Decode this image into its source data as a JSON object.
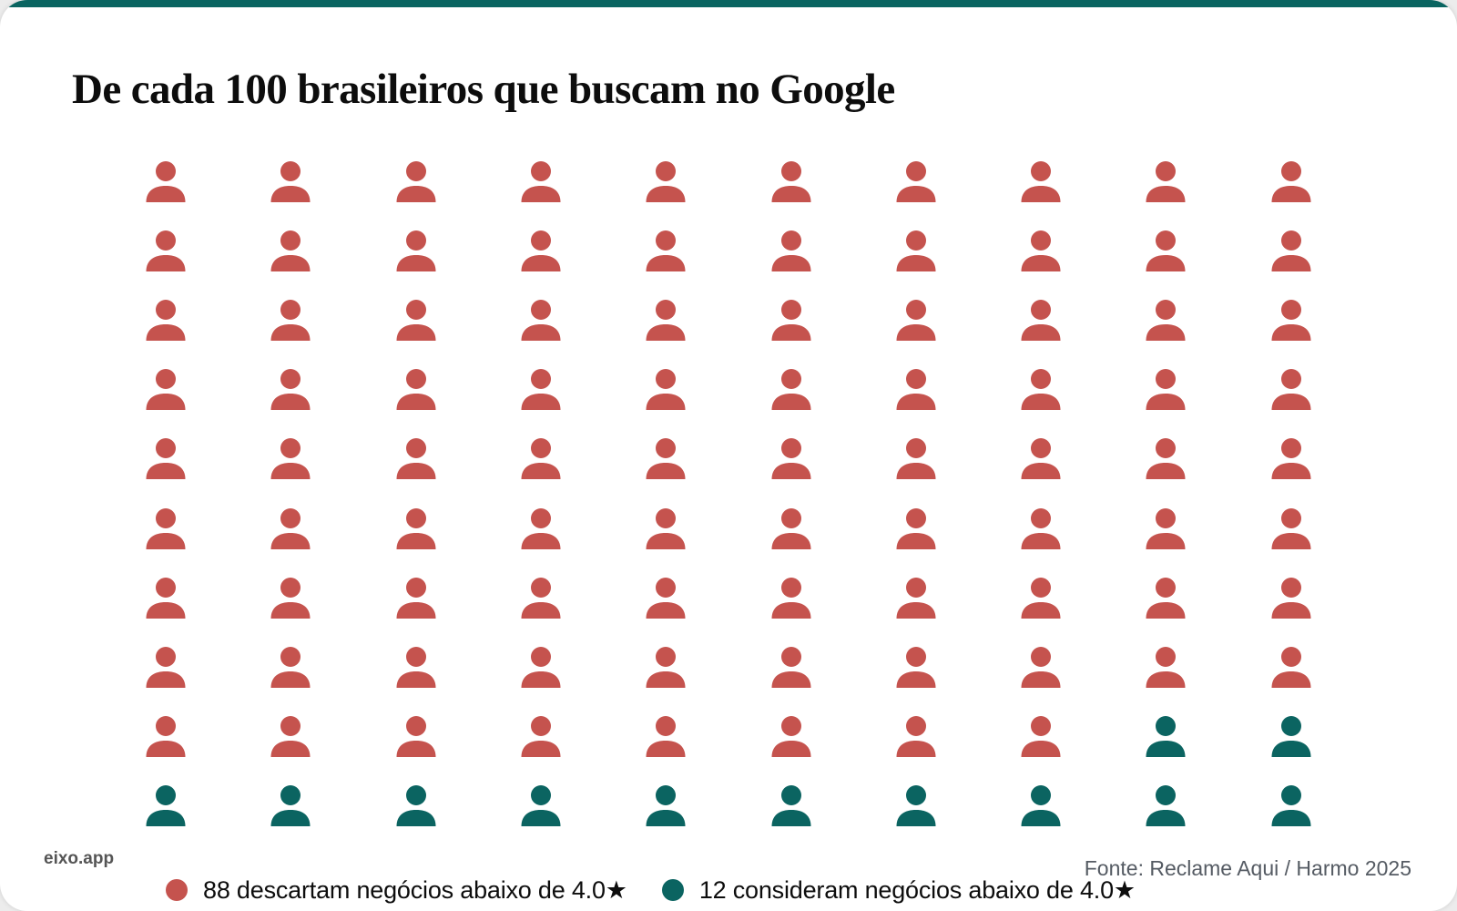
{
  "chart": {
    "title": "De cada 100 brasileiros que buscam no Google",
    "brand": "eixo.app",
    "source": "Fonte: Reclame Aqui / Harmo 2025",
    "colors": {
      "accent_bar": "#0a6561",
      "discard": "#c5534e",
      "consider": "#0b6461"
    },
    "legend": [
      {
        "label": "88 descartam negócios abaixo de 4.0★",
        "color": "#c5534e"
      },
      {
        "label": "12 consideram negócios abaixo de 4.0★",
        "color": "#0b6461"
      }
    ]
  },
  "chart_data": {
    "type": "pictogram",
    "title": "De cada 100 brasileiros que buscam no Google",
    "grid": {
      "rows": 10,
      "columns": 10
    },
    "total": 100,
    "icon": "person-icon",
    "categories": [
      "descartam negócios abaixo de 4.0★",
      "consideram negócios abaixo de 4.0★"
    ],
    "values": [
      88,
      12
    ],
    "series": [
      {
        "name": "88 descartam negócios abaixo de 4.0★",
        "value": 88,
        "color": "#c5534e"
      },
      {
        "name": "12 consideram negócios abaixo de 4.0★",
        "value": 12,
        "color": "#0b6461"
      }
    ],
    "fill_order": "row-major, first 88 red then 12 teal (last 2 of row 9 and all of row 10 teal)",
    "source": "Fonte: Reclame Aqui / Harmo 2025",
    "legend_position": "bottom"
  }
}
